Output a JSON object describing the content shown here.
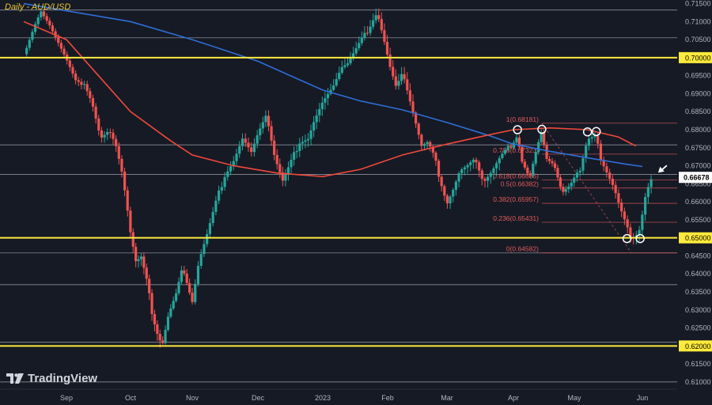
{
  "header": {
    "title": "Daily - AUD/USD"
  },
  "brand": {
    "name": "TradingView",
    "icon": "tradingview-logo-icon"
  },
  "colors": {
    "background": "#161a25",
    "bull": "#26a69a",
    "bear": "#ef5350",
    "sma_fast": "#f0493a",
    "sma_slow": "#2e6fd8",
    "key_level": "#ffeb3b",
    "fib": "#e05a5a",
    "grid_line": "#cfd1d6",
    "price_tag": "#ffffff"
  },
  "chart_data": {
    "type": "candlestick",
    "title": "Daily - AUD/USD",
    "symbol": "AUD/USD",
    "interval": "Daily",
    "ylim": [
      0.608,
      0.716
    ],
    "y_ticks": [
      "0.71500",
      "0.71000",
      "0.70500",
      "0.70000",
      "0.69500",
      "0.69000",
      "0.68500",
      "0.68000",
      "0.67500",
      "0.67000",
      "0.66500",
      "0.66000",
      "0.65500",
      "0.65000",
      "0.64500",
      "0.64000",
      "0.63500",
      "0.63000",
      "0.62500",
      "0.62000",
      "0.61500",
      "0.61000"
    ],
    "x_ticks": [
      "Sep",
      "Oct",
      "Nov",
      "Dec",
      "2023",
      "Feb",
      "Mar",
      "Apr",
      "May",
      "Jun"
    ],
    "x_tick_days": [
      0,
      30,
      61,
      91,
      122,
      153,
      181,
      212,
      242,
      273
    ],
    "last_price": {
      "label": "0.66678",
      "value": 0.66678
    },
    "key_levels": [
      {
        "label": "0.70000",
        "value": 0.7
      },
      {
        "label": "0.65000",
        "value": 0.65
      },
      {
        "label": "0.62000",
        "value": 0.62
      }
    ],
    "reference_lines": [
      0.7132,
      0.7055,
      0.6758,
      0.6676,
      0.6458,
      0.637,
      0.621,
      0.61
    ],
    "fibonacci": [
      {
        "label": "1(0.68181)",
        "value": 0.68181
      },
      {
        "label": "0.786(0.67323)",
        "value": 0.67323
      },
      {
        "label": "0.618(0.66606)",
        "value": 0.66606
      },
      {
        "label": "0.5(0.66382)",
        "value": 0.66382
      },
      {
        "label": "0.382(0.65957)",
        "value": 0.65957
      },
      {
        "label": "0.236(0.65431)",
        "value": 0.65431
      },
      {
        "label": "0(0.64582)",
        "value": 0.64582
      }
    ],
    "circled_points": [
      {
        "day": 214,
        "value": 0.68
      },
      {
        "day": 226,
        "value": 0.6801
      },
      {
        "day": 248,
        "value": 0.6794
      },
      {
        "day": 252,
        "value": 0.6795
      },
      {
        "day": 266,
        "value": 0.6498
      },
      {
        "day": 272,
        "value": 0.6498
      }
    ],
    "sma_fast": [
      [
        -20,
        0.71
      ],
      [
        0,
        0.705
      ],
      [
        15,
        0.695
      ],
      [
        30,
        0.685
      ],
      [
        50,
        0.677
      ],
      [
        61,
        0.673
      ],
      [
        80,
        0.67
      ],
      [
        100,
        0.668
      ],
      [
        122,
        0.667
      ],
      [
        140,
        0.669
      ],
      [
        160,
        0.673
      ],
      [
        181,
        0.676
      ],
      [
        200,
        0.6785
      ],
      [
        212,
        0.68
      ],
      [
        230,
        0.6805
      ],
      [
        248,
        0.68
      ],
      [
        262,
        0.678
      ],
      [
        270,
        0.6755
      ]
    ],
    "sma_slow": [
      [
        -20,
        0.715
      ],
      [
        0,
        0.713
      ],
      [
        30,
        0.71
      ],
      [
        61,
        0.705
      ],
      [
        91,
        0.699
      ],
      [
        122,
        0.691
      ],
      [
        140,
        0.688
      ],
      [
        160,
        0.6855
      ],
      [
        181,
        0.682
      ],
      [
        200,
        0.6785
      ],
      [
        212,
        0.676
      ],
      [
        230,
        0.674
      ],
      [
        250,
        0.672
      ],
      [
        265,
        0.6705
      ],
      [
        273,
        0.6698
      ]
    ],
    "price_path": [
      [
        -20,
        0.701
      ],
      [
        -15,
        0.709
      ],
      [
        -12,
        0.713
      ],
      [
        -8,
        0.709
      ],
      [
        -4,
        0.704
      ],
      [
        0,
        0.699
      ],
      [
        5,
        0.692
      ],
      [
        8,
        0.694
      ],
      [
        12,
        0.688
      ],
      [
        16,
        0.678
      ],
      [
        20,
        0.68
      ],
      [
        23,
        0.676
      ],
      [
        26,
        0.668
      ],
      [
        28,
        0.66
      ],
      [
        30,
        0.651
      ],
      [
        33,
        0.642
      ],
      [
        35,
        0.645
      ],
      [
        38,
        0.638
      ],
      [
        41,
        0.629
      ],
      [
        44,
        0.623
      ],
      [
        46,
        0.621
      ],
      [
        49,
        0.629
      ],
      [
        53,
        0.635
      ],
      [
        56,
        0.642
      ],
      [
        58,
        0.638
      ],
      [
        61,
        0.632
      ],
      [
        64,
        0.643
      ],
      [
        68,
        0.651
      ],
      [
        72,
        0.66
      ],
      [
        76,
        0.668
      ],
      [
        80,
        0.672
      ],
      [
        84,
        0.678
      ],
      [
        88,
        0.674
      ],
      [
        91,
        0.679
      ],
      [
        95,
        0.684
      ],
      [
        99,
        0.672
      ],
      [
        103,
        0.665
      ],
      [
        107,
        0.671
      ],
      [
        111,
        0.677
      ],
      [
        115,
        0.678
      ],
      [
        118,
        0.683
      ],
      [
        122,
        0.688
      ],
      [
        127,
        0.692
      ],
      [
        131,
        0.697
      ],
      [
        134,
        0.698
      ],
      [
        138,
        0.702
      ],
      [
        142,
        0.706
      ],
      [
        146,
        0.711
      ],
      [
        148,
        0.713
      ],
      [
        151,
        0.706
      ],
      [
        154,
        0.698
      ],
      [
        157,
        0.692
      ],
      [
        160,
        0.696
      ],
      [
        163,
        0.689
      ],
      [
        166,
        0.682
      ],
      [
        169,
        0.675
      ],
      [
        172,
        0.676
      ],
      [
        175,
        0.672
      ],
      [
        178,
        0.666
      ],
      [
        181,
        0.66
      ],
      [
        184,
        0.664
      ],
      [
        187,
        0.669
      ],
      [
        190,
        0.67
      ],
      [
        194,
        0.672
      ],
      [
        198,
        0.665
      ],
      [
        202,
        0.668
      ],
      [
        206,
        0.672
      ],
      [
        210,
        0.675
      ],
      [
        214,
        0.679
      ],
      [
        216,
        0.672
      ],
      [
        220,
        0.667
      ],
      [
        223,
        0.674
      ],
      [
        226,
        0.68
      ],
      [
        228,
        0.672
      ],
      [
        232,
        0.67
      ],
      [
        236,
        0.662
      ],
      [
        240,
        0.664
      ],
      [
        244,
        0.668
      ],
      [
        248,
        0.678
      ],
      [
        252,
        0.679
      ],
      [
        254,
        0.672
      ],
      [
        257,
        0.668
      ],
      [
        260,
        0.664
      ],
      [
        263,
        0.658
      ],
      [
        266,
        0.653
      ],
      [
        268,
        0.649
      ],
      [
        270,
        0.65
      ],
      [
        272,
        0.652
      ],
      [
        274,
        0.66
      ],
      [
        276,
        0.664
      ],
      [
        278,
        0.6668
      ]
    ]
  }
}
